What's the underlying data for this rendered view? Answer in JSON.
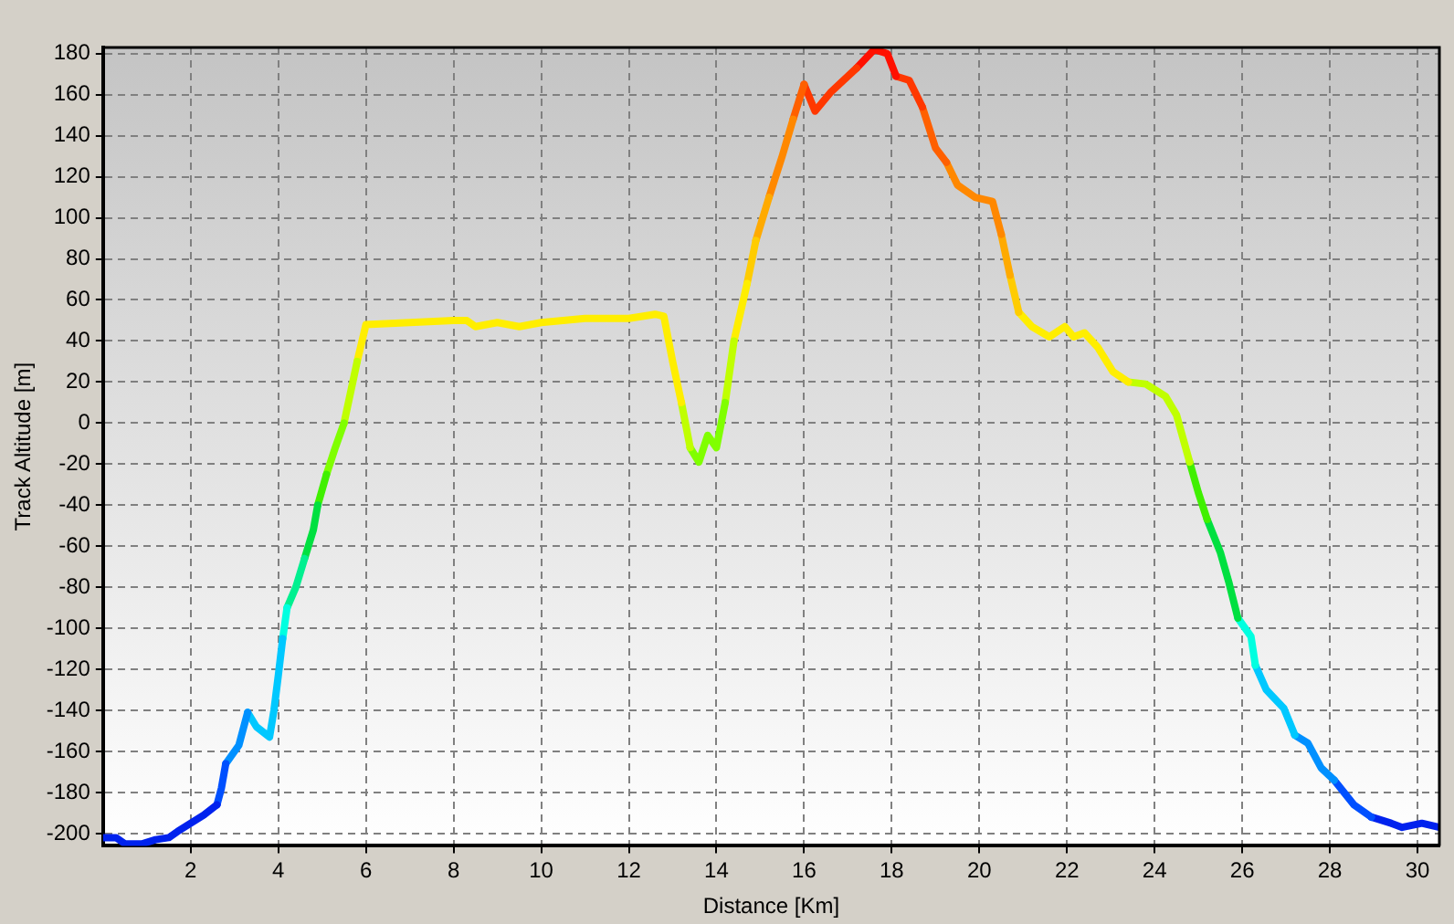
{
  "chart_data": {
    "type": "line",
    "xlabel": "Distance [Km]",
    "ylabel": "Track Altitude [m]",
    "xlim": [
      0,
      30.5
    ],
    "xticks": [
      2,
      4,
      6,
      8,
      10,
      12,
      14,
      16,
      18,
      20,
      22,
      24,
      26,
      28,
      30
    ],
    "ylim": [
      -206,
      183
    ],
    "yticks": [
      -200,
      -180,
      -160,
      -140,
      -120,
      -100,
      -80,
      -60,
      -40,
      -20,
      0,
      20,
      40,
      60,
      80,
      100,
      120,
      140,
      160,
      180
    ],
    "grid": true,
    "legend": false,
    "marker": "none",
    "line_style": "solid",
    "series": [
      {
        "color": "#0022ee",
        "x": [
          0,
          0.3,
          0.5,
          0.9,
          1.2,
          1.5,
          1.7,
          2.0,
          2.3,
          2.6
        ],
        "values": [
          -202,
          -202,
          -205,
          -205,
          -203,
          -202,
          -199,
          -195,
          -191,
          -186
        ]
      },
      {
        "color": "#0050ff",
        "x": [
          2.6,
          2.7,
          2.8
        ],
        "values": [
          -186,
          -178,
          -166
        ]
      },
      {
        "color": "#0090ff",
        "x": [
          2.8,
          3.0,
          3.1,
          3.3
        ],
        "values": [
          -166,
          -160,
          -157,
          -141
        ]
      },
      {
        "color": "#00c8ff",
        "x": [
          3.3,
          3.5,
          3.8,
          3.9,
          4.0,
          4.1
        ],
        "values": [
          -141,
          -148,
          -153,
          -140,
          -123,
          -105
        ]
      },
      {
        "color": "#00ffe0",
        "x": [
          4.1,
          4.2
        ],
        "values": [
          -105,
          -90
        ]
      },
      {
        "color": "#00f090",
        "x": [
          4.2,
          4.4,
          4.6
        ],
        "values": [
          -90,
          -80,
          -66
        ]
      },
      {
        "color": "#00e040",
        "x": [
          4.6,
          4.8,
          4.9
        ],
        "values": [
          -66,
          -52,
          -40
        ]
      },
      {
        "color": "#40f000",
        "x": [
          4.9,
          5.1
        ],
        "values": [
          -40,
          -25
        ]
      },
      {
        "color": "#80ff00",
        "x": [
          5.1,
          5.3,
          5.5
        ],
        "values": [
          -25,
          -12,
          0
        ]
      },
      {
        "color": "#c0ff00",
        "x": [
          5.5,
          5.6,
          5.8
        ],
        "values": [
          0,
          10,
          30
        ]
      },
      {
        "color": "#ffee00",
        "x": [
          5.8,
          6.0,
          7,
          8,
          8.3,
          8.5,
          9,
          9.5,
          10,
          11,
          12,
          12.6,
          12.8,
          13,
          13.2
        ],
        "values": [
          30,
          48,
          49,
          50,
          50,
          47,
          49,
          47,
          49,
          51,
          51,
          53,
          52,
          30,
          10
        ]
      },
      {
        "color": "#c0ff00",
        "x": [
          13.2,
          13.4
        ],
        "values": [
          10,
          -12
        ]
      },
      {
        "color": "#80ff00",
        "x": [
          13.4,
          13.6,
          13.8,
          14.0,
          14.2
        ],
        "values": [
          -12,
          -19,
          -6,
          -12,
          10
        ]
      },
      {
        "color": "#c0ff00",
        "x": [
          14.2,
          14.4
        ],
        "values": [
          10,
          40
        ]
      },
      {
        "color": "#ffee00",
        "x": [
          14.4,
          14.7
        ],
        "values": [
          40,
          68
        ]
      },
      {
        "color": "#ffcc00",
        "x": [
          14.7,
          14.9
        ],
        "values": [
          68,
          89
        ]
      },
      {
        "color": "#ffaa00",
        "x": [
          14.9,
          15.2
        ],
        "values": [
          89,
          110
        ]
      },
      {
        "color": "#ff8800",
        "x": [
          15.2,
          15.5,
          15.75
        ],
        "values": [
          110,
          130,
          148
        ]
      },
      {
        "color": "#ff6000",
        "x": [
          15.75,
          16.0
        ],
        "values": [
          148,
          165
        ]
      },
      {
        "color": "#ff3800",
        "x": [
          16.0,
          16.25,
          16.6,
          17.2
        ],
        "values": [
          165,
          152,
          161,
          173
        ]
      },
      {
        "color": "#ff1000",
        "x": [
          17.2,
          17.6,
          17.9,
          18.1
        ],
        "values": [
          173,
          182,
          180,
          169
        ]
      },
      {
        "color": "#ff3800",
        "x": [
          18.1,
          18.4,
          18.7
        ],
        "values": [
          169,
          167,
          154
        ]
      },
      {
        "color": "#ff6000",
        "x": [
          18.7,
          19.0,
          19.25
        ],
        "values": [
          154,
          134,
          127
        ]
      },
      {
        "color": "#ff8800",
        "x": [
          19.25,
          19.5,
          19.9,
          20.3,
          20.5
        ],
        "values": [
          127,
          116,
          110,
          108,
          92
        ]
      },
      {
        "color": "#ffaa00",
        "x": [
          20.5,
          20.7
        ],
        "values": [
          92,
          72
        ]
      },
      {
        "color": "#ffcc00",
        "x": [
          20.7,
          20.9
        ],
        "values": [
          72,
          54
        ]
      },
      {
        "color": "#ffee00",
        "x": [
          20.9,
          21.2,
          21.6,
          21.95,
          22.15,
          22.4,
          22.7,
          23.05,
          23.4
        ],
        "values": [
          54,
          47,
          42,
          47,
          42,
          44,
          37,
          25,
          20
        ]
      },
      {
        "color": "#c0ff00",
        "x": [
          23.4,
          23.8,
          24.25,
          24.5,
          24.8
        ],
        "values": [
          20,
          19,
          13,
          4,
          -19
        ]
      },
      {
        "color": "#40f000",
        "x": [
          24.8,
          25.0,
          25.2
        ],
        "values": [
          -19,
          -34,
          -47
        ]
      },
      {
        "color": "#00e040",
        "x": [
          25.2,
          25.5,
          25.7,
          25.9
        ],
        "values": [
          -47,
          -63,
          -78,
          -95
        ]
      },
      {
        "color": "#00ffe0",
        "x": [
          25.9,
          26.2,
          26.3
        ],
        "values": [
          -95,
          -104,
          -118
        ]
      },
      {
        "color": "#00c8ff",
        "x": [
          26.3,
          26.55,
          26.95,
          27.2
        ],
        "values": [
          -118,
          -130,
          -139,
          -152
        ]
      },
      {
        "color": "#0090ff",
        "x": [
          27.2,
          27.5,
          27.8,
          28.1
        ],
        "values": [
          -152,
          -156,
          -168,
          -174
        ]
      },
      {
        "color": "#0050ff",
        "x": [
          28.1,
          28.55,
          28.95
        ],
        "values": [
          -174,
          -186,
          -192
        ]
      },
      {
        "color": "#0022ee",
        "x": [
          28.95,
          29.4,
          29.65,
          30.1,
          30.5
        ],
        "values": [
          -192,
          -195,
          -197,
          -195,
          -197
        ]
      }
    ]
  }
}
